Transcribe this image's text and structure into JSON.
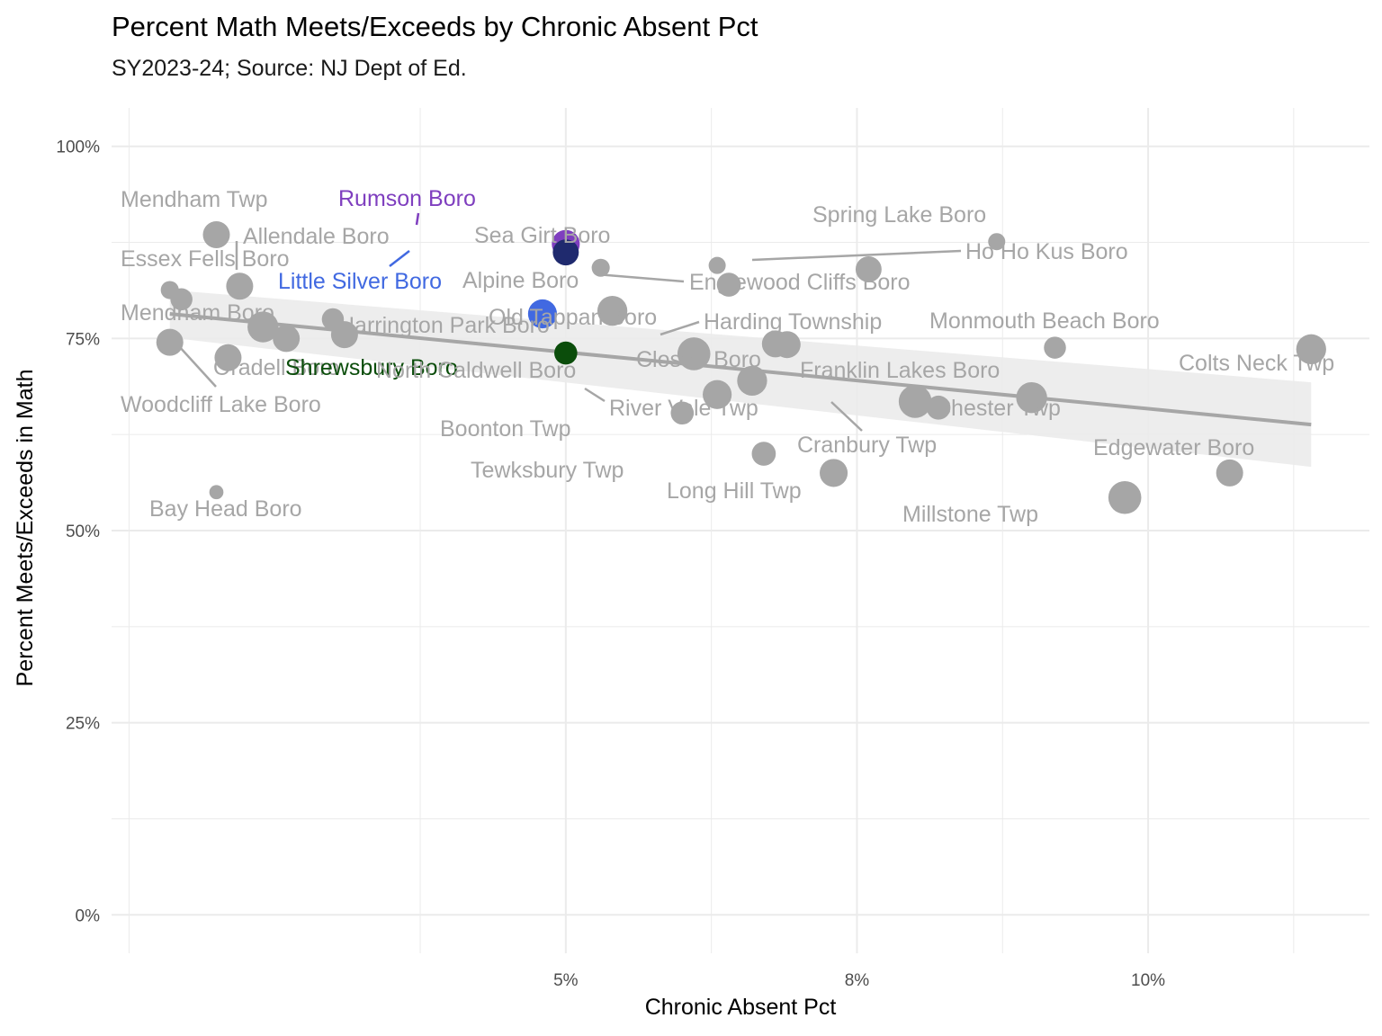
{
  "chart_data": {
    "type": "scatter",
    "title": "Percent Math Meets/Exceeds by Chronic Absent Pct",
    "subtitle": "SY2023-24; Source: NJ Dept of Ed.",
    "xlabel": "Chronic Absent Pct",
    "ylabel": "Percent Meets/Exceeds in Math",
    "xlim": [
      1.1,
      11.9
    ],
    "ylim": [
      -0.05,
      1.05
    ],
    "x_ticks": [
      {
        "value": 5,
        "label": "5%"
      },
      {
        "value": 7.5,
        "label": "8%"
      },
      {
        "value": 10,
        "label": "10%"
      }
    ],
    "y_ticks": [
      {
        "value": 0,
        "label": "0%"
      },
      {
        "value": 0.25,
        "label": "25%"
      },
      {
        "value": 0.5,
        "label": "50%"
      },
      {
        "value": 0.75,
        "label": "75%"
      },
      {
        "value": 1,
        "label": "100%"
      }
    ],
    "grid": true,
    "legend": "none",
    "colors": {
      "default": "#a6a6a6",
      "trend": "#a6a6a6",
      "ribbon": "#ebebeb",
      "grid": "#ebebeb"
    },
    "trend": {
      "x": [
        1.6,
        11.4
      ],
      "y": [
        0.782,
        0.638
      ],
      "ci_upper": [
        0.813,
        0.693
      ],
      "ci_lower": [
        0.751,
        0.583
      ]
    },
    "points": [
      {
        "x": 2.0,
        "y": 0.885,
        "size": 1.0,
        "label": "Mendham Twp"
      },
      {
        "x": 2.2,
        "y": 0.818,
        "size": 1.0,
        "label": "Allendale Boro"
      },
      {
        "x": 1.6,
        "y": 0.813,
        "size": 0.55,
        "label": "Essex Fells Boro"
      },
      {
        "x": 1.7,
        "y": 0.801,
        "size": 0.75,
        "label": ""
      },
      {
        "x": 3.0,
        "y": 0.775,
        "size": 0.75,
        "label": "Mendham Boro"
      },
      {
        "x": 2.4,
        "y": 0.765,
        "size": 1.2,
        "label": ""
      },
      {
        "x": 2.6,
        "y": 0.75,
        "size": 1.0,
        "label": ""
      },
      {
        "x": 3.1,
        "y": 0.755,
        "size": 1.0,
        "label": "Harrington Park Boro"
      },
      {
        "x": 1.6,
        "y": 0.745,
        "size": 1.0,
        "label": "Woodcliff Lake Boro"
      },
      {
        "x": 2.1,
        "y": 0.725,
        "size": 1.0,
        "label": "Oradell Boro"
      },
      {
        "x": 2.0,
        "y": 0.55,
        "size": 0.35,
        "label": "Bay Head Boro"
      },
      {
        "x": 5.0,
        "y": 0.873,
        "size": 1.05,
        "label": "Rumson Boro",
        "color": "#7f3fbf"
      },
      {
        "x": 5.0,
        "y": 0.862,
        "size": 0.95,
        "label": "",
        "color": "#1f2a6e"
      },
      {
        "x": 4.8,
        "y": 0.782,
        "size": 1.1,
        "label": "Little Silver Boro",
        "color": "#4169e1"
      },
      {
        "x": 5.0,
        "y": 0.731,
        "size": 0.8,
        "label": "Shrewsbury Boro",
        "color": "#0b4d0b"
      },
      {
        "x": 5.3,
        "y": 0.842,
        "size": 0.55,
        "label": "Sea Girt Boro"
      },
      {
        "x": 5.4,
        "y": 0.786,
        "size": 1.15,
        "label": "Alpine Boro"
      },
      {
        "x": 6.3,
        "y": 0.845,
        "size": 0.5,
        "label": ""
      },
      {
        "x": 6.4,
        "y": 0.82,
        "size": 0.85,
        "label": "Englewood Cliffs Boro"
      },
      {
        "x": 6.1,
        "y": 0.73,
        "size": 1.3,
        "label": "Old Tappan Boro"
      },
      {
        "x": 6.9,
        "y": 0.742,
        "size": 1.0,
        "label": "Harding Township"
      },
      {
        "x": 6.8,
        "y": 0.743,
        "size": 1.0,
        "label": "Closter Boro"
      },
      {
        "x": 6.6,
        "y": 0.695,
        "size": 1.15,
        "label": "North Caldwell Boro"
      },
      {
        "x": 6.3,
        "y": 0.677,
        "size": 1.1,
        "label": "River Vale Twp"
      },
      {
        "x": 6.0,
        "y": 0.653,
        "size": 0.8,
        "label": "Boonton Twp"
      },
      {
        "x": 6.7,
        "y": 0.6,
        "size": 0.85,
        "label": "Tewksbury Twp"
      },
      {
        "x": 7.3,
        "y": 0.575,
        "size": 1.05,
        "label": "Long Hill Twp"
      },
      {
        "x": 7.6,
        "y": 0.84,
        "size": 0.95,
        "label": ""
      },
      {
        "x": 8.7,
        "y": 0.876,
        "size": 0.5,
        "label": "Spring Lake Boro"
      },
      {
        "x": 9.2,
        "y": 0.738,
        "size": 0.75,
        "label": "Monmouth Beach Boro"
      },
      {
        "x": 8.0,
        "y": 0.668,
        "size": 1.3,
        "label": "Franklin Lakes Boro"
      },
      {
        "x": 8.2,
        "y": 0.66,
        "size": 0.85,
        "label": "Cranbury Twp"
      },
      {
        "x": 9.0,
        "y": 0.673,
        "size": 1.2,
        "label": "Chester Twp"
      },
      {
        "x": 9.8,
        "y": 0.543,
        "size": 1.3,
        "label": "Millstone Twp"
      },
      {
        "x": 11.4,
        "y": 0.736,
        "size": 1.15,
        "label": "Colts Neck Twp"
      },
      {
        "x": 10.7,
        "y": 0.575,
        "size": 1.0,
        "label": "Edgewater Boro"
      },
      {
        "x": 7.6,
        "y": 0.84,
        "size": 0.0,
        "label": "Ho Ho Kus Boro"
      }
    ]
  }
}
